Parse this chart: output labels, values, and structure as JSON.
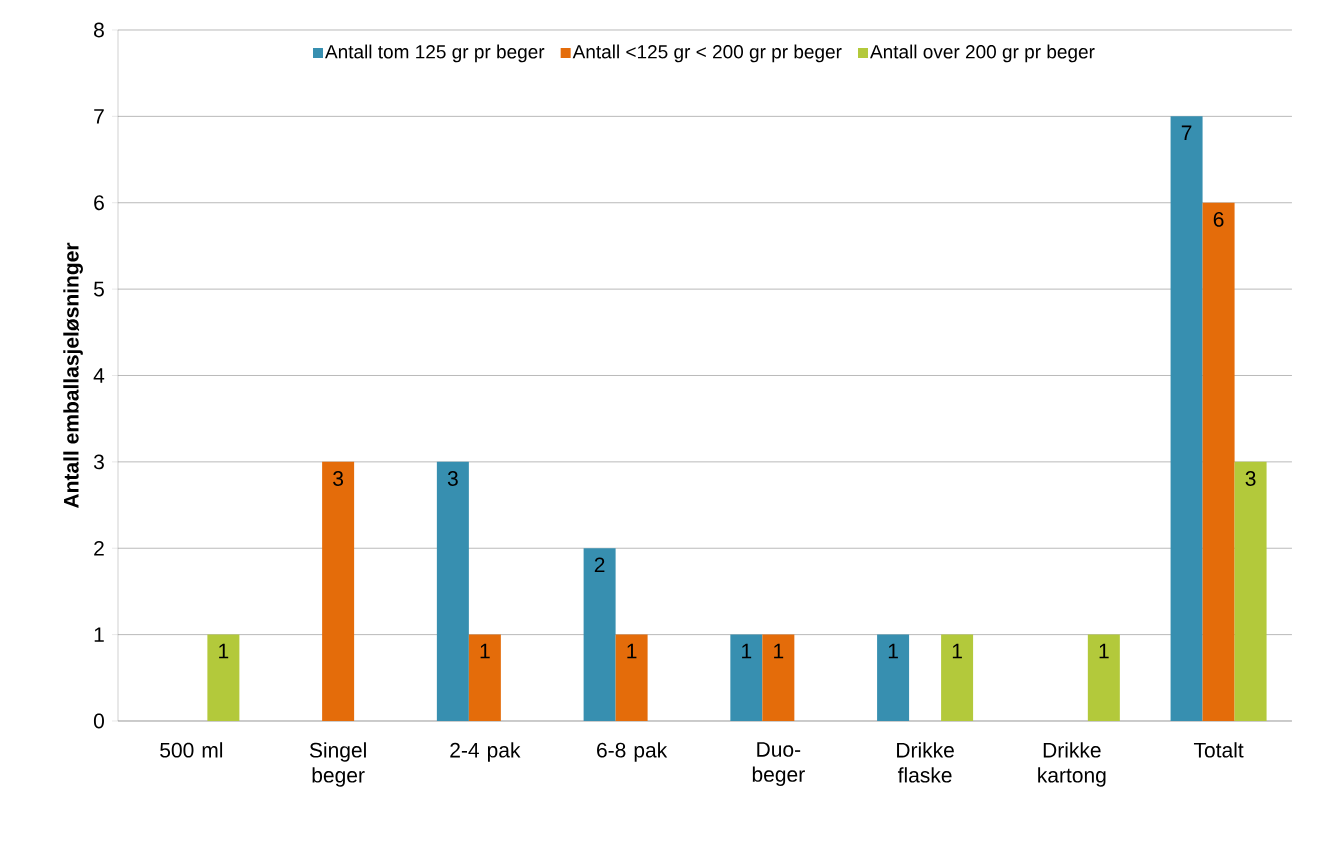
{
  "chart_data": {
    "type": "bar",
    "ylabel": "Antall emballasjeløsninger",
    "categories": [
      "500 ml",
      "Singel beger",
      "2-4 pak",
      "6-8 pak",
      "Duo- beger",
      "Drikke flaske",
      "Drikke kartong",
      "Totalt"
    ],
    "series": [
      {
        "name": "Antall tom 125 gr pr beger",
        "color": "#378fb0",
        "values": [
          null,
          null,
          3,
          2,
          1,
          1,
          null,
          7
        ]
      },
      {
        "name": "Antall <125 gr < 200 gr pr beger",
        "color": "#e46c0a",
        "values": [
          null,
          3,
          1,
          1,
          1,
          null,
          null,
          6
        ]
      },
      {
        "name": "Antall over 200 gr pr beger",
        "color": "#b3c93b",
        "values": [
          1,
          null,
          null,
          null,
          null,
          1,
          1,
          3
        ]
      }
    ],
    "ylim": [
      0,
      8
    ],
    "yticks": [
      0,
      1,
      2,
      3,
      4,
      5,
      6,
      7,
      8
    ],
    "grid": "y",
    "legend": "top",
    "data_labels": true
  }
}
